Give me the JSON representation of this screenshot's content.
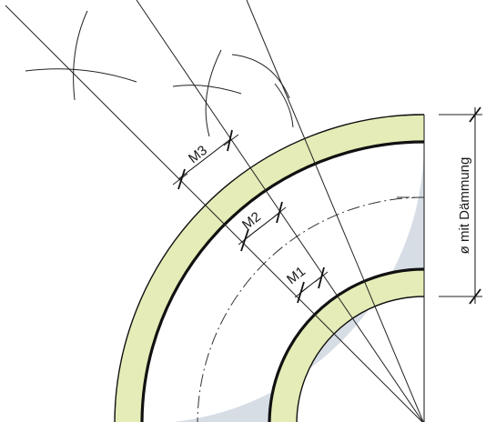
{
  "labels": {
    "m1": "M1",
    "m2": "M2",
    "m3": "M3",
    "dimension": "ø mit Dämmung"
  },
  "colors": {
    "insulation": "#e5ecb7",
    "pipe_fill": "#d6dde5",
    "outline": "#111111",
    "construction_line": "#222222"
  }
}
